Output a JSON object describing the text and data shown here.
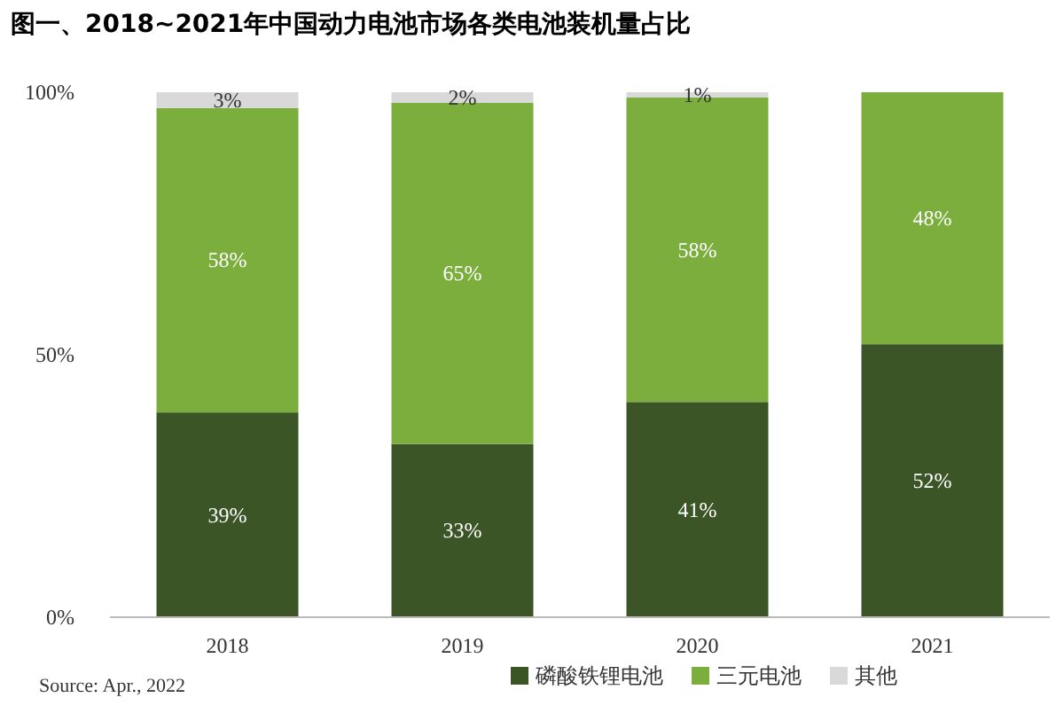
{
  "chart_data": {
    "type": "bar",
    "title": "图一、2018~2021年中国动力电池市场各类电池装机量占比",
    "categories": [
      "2018",
      "2019",
      "2020",
      "2021"
    ],
    "stacked": true,
    "series": [
      {
        "name": "磷酸铁锂电池",
        "color": "#3b5526",
        "values": [
          39,
          33,
          41,
          52
        ],
        "value_labels": [
          "39%",
          "33%",
          "41%",
          "52%"
        ]
      },
      {
        "name": "三元电池",
        "color": "#7cae3e",
        "values": [
          58,
          65,
          58,
          48
        ],
        "value_labels": [
          "58%",
          "65%",
          "58%",
          "48%"
        ]
      },
      {
        "name": "其他",
        "color": "#d9d9d9",
        "values": [
          3,
          2,
          1,
          0
        ],
        "value_labels": [
          "3%",
          "2%",
          "1%",
          null
        ]
      }
    ],
    "ylim": [
      0,
      100
    ],
    "yticks": [
      {
        "value": 0,
        "label": "0%"
      },
      {
        "value": 50,
        "label": "50%"
      },
      {
        "value": 100,
        "label": "100%"
      }
    ],
    "legend": "bottom",
    "annotations": [
      "Source: Apr., 2022"
    ]
  }
}
